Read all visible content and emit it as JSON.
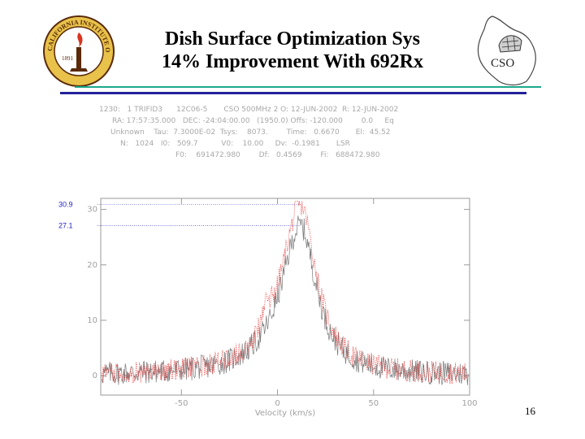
{
  "slide": {
    "title_line1": "Dish Surface Optimization Sys",
    "title_line2": "14% Improvement With 692Rx",
    "page_number": "16",
    "caltech_seal_text": "CALIFORNIA INSTITUTE OF TECHNOLOGY",
    "caltech_seal_year": "1891",
    "cso_logo_text": "CSO"
  },
  "spectrum_header": {
    "line1": "1230:   1 TRIFID3      12C06-5       CSO 500MHz 2 O: 12-JUN-2002  R: 12-JUN-2002",
    "line2": "RA: 17:57:35.000   DEC: -24:04:00.00   (1950.0) Offs: -120.000        0.0     Eq",
    "line3": "Unknown    Tau:  7.3000E-02  Tsys:    8073.        Time:   0.6670       El:  45.52",
    "line4": "N:   1024   I0:   509.7          V0:    10.00     Dv:  -0.1981       LSR",
    "line5": "F0:    691472.980        Df:   0.4569        Fi:   688472.980"
  },
  "chart_data": {
    "type": "line",
    "xlabel": "Velocity (km/s)",
    "ylabel": "",
    "xlim": [
      -92,
      100
    ],
    "ylim": [
      -3.5,
      32
    ],
    "xticks": [
      -50,
      0,
      50,
      100
    ],
    "yticks": [
      0,
      10,
      20,
      30
    ],
    "grid": false,
    "series": [
      {
        "color": "#7a7a7a",
        "dash": "solid",
        "peak": 27.1,
        "peak_x": 12,
        "wing_left": 30,
        "wing_right": 24,
        "noise": 2.2,
        "shoulder_x": -6,
        "shoulder_amp": 0
      },
      {
        "color": "#e33a3a",
        "dash": "dotted",
        "peak": 30.9,
        "peak_x": 12,
        "wing_left": 30,
        "wing_right": 24,
        "noise": 2.0,
        "shoulder_x": -6,
        "shoulder_amp": 3
      }
    ],
    "annotations": [
      {
        "label": "30.9",
        "value": 30.9,
        "color": "#2323c8"
      },
      {
        "label": "27.1",
        "value": 27.1,
        "color": "#2323c8"
      }
    ]
  }
}
